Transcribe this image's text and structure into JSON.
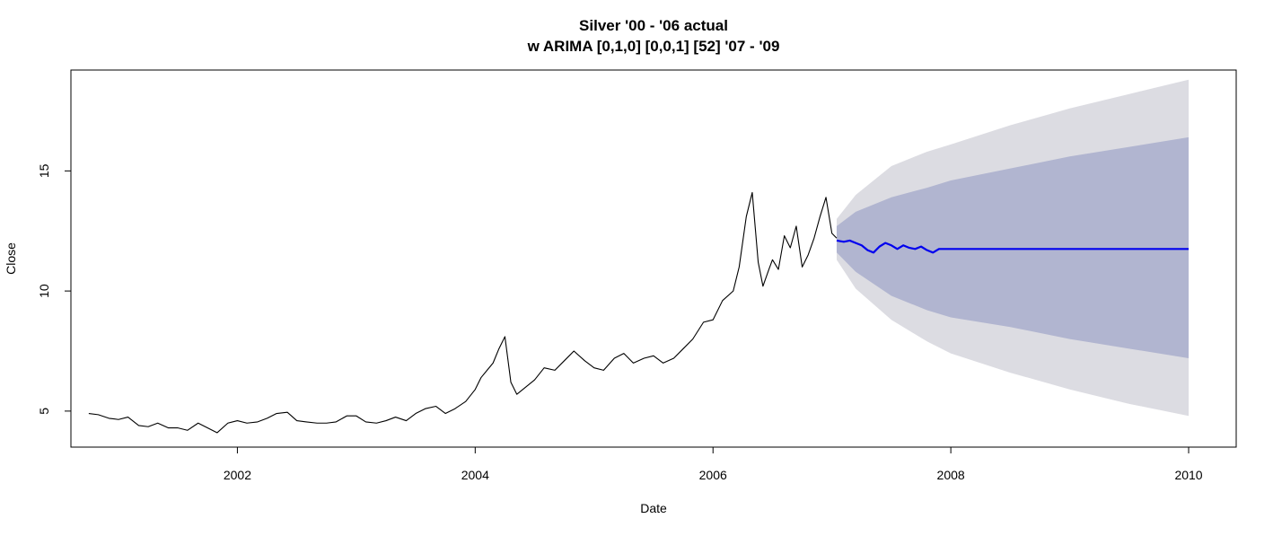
{
  "chart_data": {
    "type": "line",
    "title": "Silver '00 - '06 actual",
    "subtitle": "w ARIMA [0,1,0] [0,0,1] [52] '07 - '09",
    "xlabel": "Date",
    "ylabel": "Close",
    "xlim": [
      2000.6,
      2010.4
    ],
    "ylim": [
      3.5,
      19.2
    ],
    "x_ticks": [
      2002,
      2004,
      2006,
      2008,
      2010
    ],
    "y_ticks": [
      5,
      10,
      15
    ],
    "grid": false,
    "legend": "none",
    "colors": {
      "actual": "#000000",
      "forecast": "#0000ee",
      "band_80": "#b1b5d0",
      "band_95": "#dcdce2"
    },
    "series": [
      {
        "x": [
          2000.75,
          2000.83,
          2000.92,
          2001.0,
          2001.08,
          2001.17,
          2001.25,
          2001.33,
          2001.42,
          2001.5,
          2001.58,
          2001.67,
          2001.75,
          2001.83,
          2001.92,
          2002.0,
          2002.08,
          2002.17,
          2002.25,
          2002.33,
          2002.42,
          2002.5,
          2002.58,
          2002.67,
          2002.75,
          2002.83,
          2002.92,
          2003.0,
          2003.08,
          2003.17,
          2003.25,
          2003.33,
          2003.42,
          2003.5,
          2003.58,
          2003.67,
          2003.75,
          2003.83,
          2003.92,
          2004.0,
          2004.05,
          2004.1,
          2004.15,
          2004.2,
          2004.25,
          2004.3,
          2004.35,
          2004.4,
          2004.45,
          2004.5,
          2004.58,
          2004.67,
          2004.75,
          2004.83,
          2004.92,
          2005.0,
          2005.08,
          2005.17,
          2005.25,
          2005.33,
          2005.42,
          2005.5,
          2005.58,
          2005.67,
          2005.75,
          2005.83,
          2005.92,
          2006.0,
          2006.08,
          2006.17,
          2006.22,
          2006.28,
          2006.33,
          2006.38,
          2006.42,
          2006.47,
          2006.5,
          2006.55,
          2006.6,
          2006.65,
          2006.7,
          2006.75,
          2006.8,
          2006.85,
          2006.9,
          2006.95,
          2007.0,
          2007.04
        ],
        "values": [
          4.9,
          4.85,
          4.7,
          4.65,
          4.75,
          4.4,
          4.35,
          4.5,
          4.3,
          4.3,
          4.2,
          4.5,
          4.3,
          4.1,
          4.5,
          4.6,
          4.5,
          4.55,
          4.7,
          4.9,
          4.95,
          4.6,
          4.55,
          4.5,
          4.5,
          4.55,
          4.8,
          4.8,
          4.55,
          4.5,
          4.6,
          4.75,
          4.6,
          4.9,
          5.1,
          5.2,
          4.9,
          5.1,
          5.4,
          5.9,
          6.4,
          6.7,
          7.0,
          7.6,
          8.1,
          6.2,
          5.7,
          5.9,
          6.1,
          6.3,
          6.8,
          6.7,
          7.1,
          7.5,
          7.1,
          6.8,
          6.7,
          7.2,
          7.4,
          7.0,
          7.2,
          7.3,
          7.0,
          7.2,
          7.6,
          8.0,
          8.7,
          8.8,
          9.6,
          10.0,
          11.0,
          13.1,
          14.1,
          11.2,
          10.2,
          10.9,
          11.3,
          10.9,
          12.3,
          11.8,
          12.7,
          11.0,
          11.5,
          12.2,
          13.1,
          13.9,
          12.4,
          12.2
        ]
      },
      {
        "x": [
          2007.04,
          2007.1,
          2007.15,
          2007.2,
          2007.25,
          2007.3,
          2007.35,
          2007.4,
          2007.45,
          2007.5,
          2007.55,
          2007.6,
          2007.65,
          2007.7,
          2007.75,
          2007.8,
          2007.85,
          2007.9,
          2007.95,
          2008.0,
          2010.0
        ],
        "values": [
          12.1,
          12.05,
          12.1,
          12.0,
          11.9,
          11.7,
          11.6,
          11.85,
          12.0,
          11.9,
          11.75,
          11.9,
          11.8,
          11.75,
          11.85,
          11.7,
          11.6,
          11.75,
          11.75,
          11.75,
          11.75
        ]
      }
    ],
    "forecast_band_80": {
      "x": [
        2007.04,
        2007.2,
        2007.5,
        2007.8,
        2008.0,
        2008.5,
        2009.0,
        2009.5,
        2010.0
      ],
      "lower": [
        11.6,
        10.8,
        9.8,
        9.2,
        8.9,
        8.5,
        8.0,
        7.6,
        7.2
      ],
      "upper": [
        12.7,
        13.3,
        13.9,
        14.3,
        14.6,
        15.1,
        15.6,
        16.0,
        16.4
      ]
    },
    "forecast_band_95": {
      "x": [
        2007.04,
        2007.2,
        2007.5,
        2007.8,
        2008.0,
        2008.5,
        2009.0,
        2009.5,
        2010.0
      ],
      "lower": [
        11.3,
        10.1,
        8.8,
        7.9,
        7.4,
        6.6,
        5.9,
        5.3,
        4.8
      ],
      "upper": [
        13.0,
        14.0,
        15.2,
        15.8,
        16.1,
        16.9,
        17.6,
        18.2,
        18.8
      ]
    }
  }
}
